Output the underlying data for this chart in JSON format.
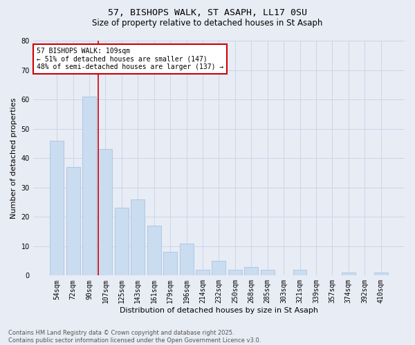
{
  "title1": "57, BISHOPS WALK, ST ASAPH, LL17 0SU",
  "title2": "Size of property relative to detached houses in St Asaph",
  "xlabel": "Distribution of detached houses by size in St Asaph",
  "ylabel": "Number of detached properties",
  "categories": [
    "54sqm",
    "72sqm",
    "90sqm",
    "107sqm",
    "125sqm",
    "143sqm",
    "161sqm",
    "179sqm",
    "196sqm",
    "214sqm",
    "232sqm",
    "250sqm",
    "268sqm",
    "285sqm",
    "303sqm",
    "321sqm",
    "339sqm",
    "357sqm",
    "374sqm",
    "392sqm",
    "410sqm"
  ],
  "values": [
    46,
    37,
    61,
    43,
    23,
    26,
    17,
    8,
    11,
    2,
    5,
    2,
    3,
    2,
    0,
    2,
    0,
    0,
    1,
    0,
    1
  ],
  "bar_color": "#c9dcf0",
  "bar_edge_color": "#b0c8e4",
  "vline_index": 3,
  "vline_color": "#cc0000",
  "annotation_text": "57 BISHOPS WALK: 109sqm\n← 51% of detached houses are smaller (147)\n48% of semi-detached houses are larger (137) →",
  "annotation_box_color": "#ffffff",
  "annotation_box_edge": "#cc0000",
  "ylim": [
    0,
    80
  ],
  "yticks": [
    0,
    10,
    20,
    30,
    40,
    50,
    60,
    70,
    80
  ],
  "grid_color": "#ccd4e8",
  "background_color": "#e8ecf5",
  "title1_fontsize": 9.5,
  "title2_fontsize": 8.5,
  "xlabel_fontsize": 8,
  "ylabel_fontsize": 8,
  "tick_fontsize": 7,
  "footnote": "Contains HM Land Registry data © Crown copyright and database right 2025.\nContains public sector information licensed under the Open Government Licence v3.0.",
  "footnote_fontsize": 6
}
